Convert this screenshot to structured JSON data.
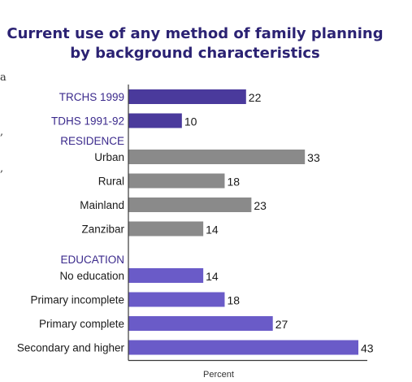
{
  "chart_data": {
    "type": "bar",
    "orientation": "horizontal",
    "title": [
      "Current use of any method of family planning",
      "by background characteristics"
    ],
    "xlabel": "Percent",
    "xlim": [
      0,
      43
    ],
    "groups": [
      {
        "name": "",
        "rows": [
          {
            "label": "TRCHS 1999",
            "value": 22,
            "color": "#4a3a9c",
            "label_color": "#3b2a8c"
          },
          {
            "label": "TDHS 1991-92",
            "value": 10,
            "color": "#4a3a9c",
            "label_color": "#3b2a8c"
          }
        ]
      },
      {
        "name": "RESIDENCE",
        "rows": [
          {
            "label": "Urban",
            "value": 33,
            "color": "#8a8a8a",
            "label_color": "#1a1a1a"
          },
          {
            "label": "Rural",
            "value": 18,
            "color": "#8a8a8a",
            "label_color": "#1a1a1a"
          },
          {
            "label": "Mainland",
            "value": 23,
            "color": "#8a8a8a",
            "label_color": "#1a1a1a"
          },
          {
            "label": "Zanzibar",
            "value": 14,
            "color": "#8a8a8a",
            "label_color": "#1a1a1a"
          }
        ]
      },
      {
        "name": "EDUCATION",
        "rows": [
          {
            "label": "No education",
            "value": 14,
            "color": "#6a5bc8",
            "label_color": "#1a1a1a"
          },
          {
            "label": "Primary incomplete",
            "value": 18,
            "color": "#6a5bc8",
            "label_color": "#1a1a1a"
          },
          {
            "label": "Primary complete",
            "value": 27,
            "color": "#6a5bc8",
            "label_color": "#1a1a1a"
          },
          {
            "label": "Secondary and higher",
            "value": 43,
            "color": "#6a5bc8",
            "label_color": "#1a1a1a"
          }
        ]
      }
    ],
    "group_header_color": "#3b2a8c",
    "axis_color": "#3a3a3a"
  },
  "margin_marks": [
    "a",
    ",",
    ","
  ]
}
